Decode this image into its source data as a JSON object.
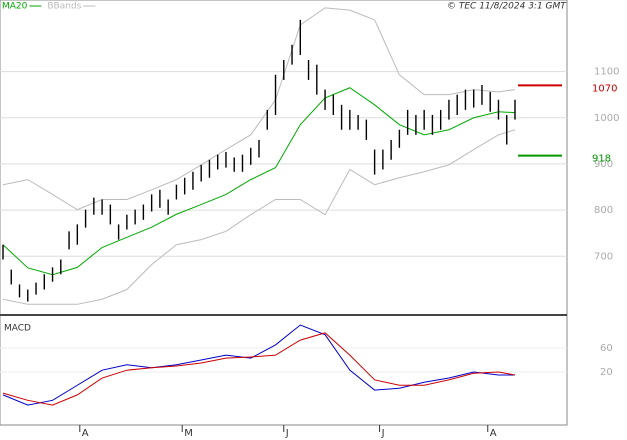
{
  "chart_data": [
    {
      "type": "ohlc",
      "source": "© TEC 11/8/2024 3:1 GMT",
      "legend": [
        {
          "name": "MA20",
          "color": "#00aa00"
        },
        {
          "name": "BBands",
          "color": "#bbbbbb"
        }
      ],
      "color": "#000000",
      "xlim": [
        0,
        62
      ],
      "ylim": [
        575,
        1255
      ],
      "yticks": [
        700,
        800,
        900,
        1000,
        1100
      ],
      "grid": true,
      "high": [
        725,
        671,
        639,
        628,
        643,
        661,
        676,
        693,
        754,
        769,
        801,
        827,
        823,
        812,
        769,
        790,
        801,
        812,
        834,
        844,
        823,
        855,
        870,
        883,
        898,
        909,
        920,
        926,
        914,
        920,
        935,
        952,
        1017,
        1093,
        1125,
        1158,
        1212,
        1125,
        1115,
        1061,
        1050,
        1028,
        1017,
        1006,
        996,
        931,
        931,
        952,
        974,
        1017,
        1006,
        1017,
        1006,
        1017,
        1039,
        1050,
        1061,
        1061,
        1071,
        1056,
        1039,
        1006,
        1039
      ],
      "low": [
        693,
        639,
        611,
        602,
        617,
        628,
        645,
        661,
        715,
        725,
        762,
        790,
        790,
        769,
        736,
        758,
        769,
        779,
        797,
        805,
        790,
        823,
        834,
        844,
        862,
        870,
        888,
        892,
        883,
        883,
        898,
        914,
        974,
        1006,
        1082,
        1115,
        1136,
        1082,
        1050,
        1017,
        1006,
        974,
        974,
        974,
        952,
        877,
        888,
        909,
        935,
        963,
        963,
        974,
        963,
        974,
        996,
        1006,
        1017,
        1022,
        1028,
        1013,
        996,
        942,
        996
      ],
      "line_x": [
        0,
        3,
        6,
        9,
        12,
        15,
        18,
        21,
        24,
        27,
        30,
        33,
        36,
        39,
        42,
        45,
        48,
        51,
        54,
        57,
        60,
        62
      ],
      "ma20": {
        "name": "MA20",
        "color": "#00aa00",
        "values": [
          725,
          675,
          660,
          676,
          719,
          741,
          763,
          791,
          812,
          834,
          866,
          892,
          985,
          1043,
          1065,
          1028,
          985,
          963,
          974,
          1000,
          1013,
          1011
        ]
      },
      "bbands": {
        "color": "#bbbbbb",
        "upper": [
          855,
          866,
          834,
          801,
          823,
          823,
          844,
          866,
          898,
          931,
          963,
          1039,
          1201,
          1238,
          1233,
          1212,
          1093,
          1050,
          1050,
          1061,
          1056,
          1061
        ],
        "lower": [
          607,
          596,
          596,
          596,
          607,
          628,
          682,
          725,
          736,
          754,
          790,
          823,
          823,
          790,
          888,
          855,
          870,
          883,
          898,
          931,
          963,
          974
        ]
      },
      "levels": [
        {
          "value": 1070,
          "color": "#cc0000"
        },
        {
          "value": 918,
          "color": "#009900"
        }
      ]
    },
    {
      "type": "macd",
      "title": "MACD",
      "ylim": [
        -68,
        113
      ],
      "yticks": [
        60,
        20
      ],
      "grid": true,
      "xticks": [
        {
          "value": 9.3,
          "label": "A"
        },
        {
          "value": 21.7,
          "label": "M"
        },
        {
          "value": 34,
          "label": "J"
        },
        {
          "value": 45.6,
          "label": "J"
        },
        {
          "value": 58.7,
          "label": "A"
        }
      ],
      "lines": [
        {
          "color": "#0000cc",
          "values": [
            -18,
            -35,
            -27,
            -2,
            23,
            32,
            27,
            32,
            40,
            48,
            43,
            65,
            98,
            82,
            23,
            -10,
            -7,
            3,
            10,
            20,
            15,
            15
          ]
        },
        {
          "color": "#cc0000",
          "values": [
            -15,
            -27,
            -35,
            -18,
            10,
            23,
            27,
            30,
            35,
            43,
            45,
            48,
            73,
            85,
            48,
            7,
            -2,
            -2,
            7,
            18,
            20,
            15
          ]
        }
      ]
    }
  ]
}
